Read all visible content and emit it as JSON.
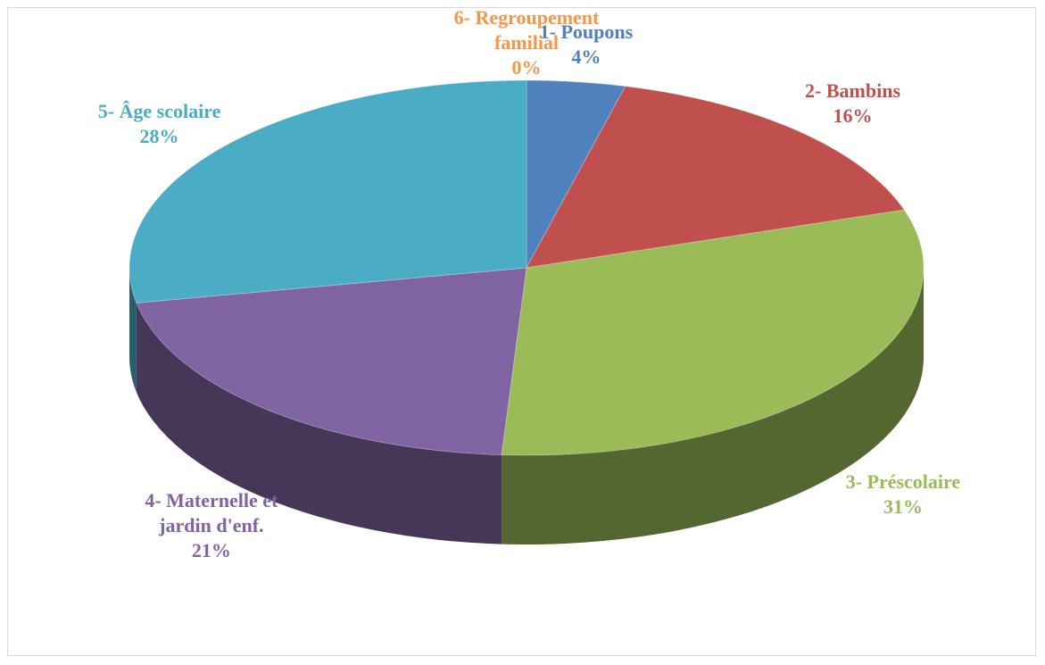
{
  "chart_data": {
    "type": "pie",
    "categories": [
      "1- Poupons",
      "2- Bambins",
      "3- Préscolaire",
      "4- Maternelle et jardin d'enf.",
      "5- Âge scolaire",
      "6- Regroupement familial"
    ],
    "values": [
      4,
      16,
      31,
      21,
      28,
      0
    ],
    "value_labels": [
      "4%",
      "16%",
      "31%",
      "21%",
      "28%",
      "0%"
    ],
    "colors": [
      "#4f81bd",
      "#c0504d",
      "#9bbb59",
      "#8064a2",
      "#4bacc6",
      "#f79646"
    ]
  }
}
